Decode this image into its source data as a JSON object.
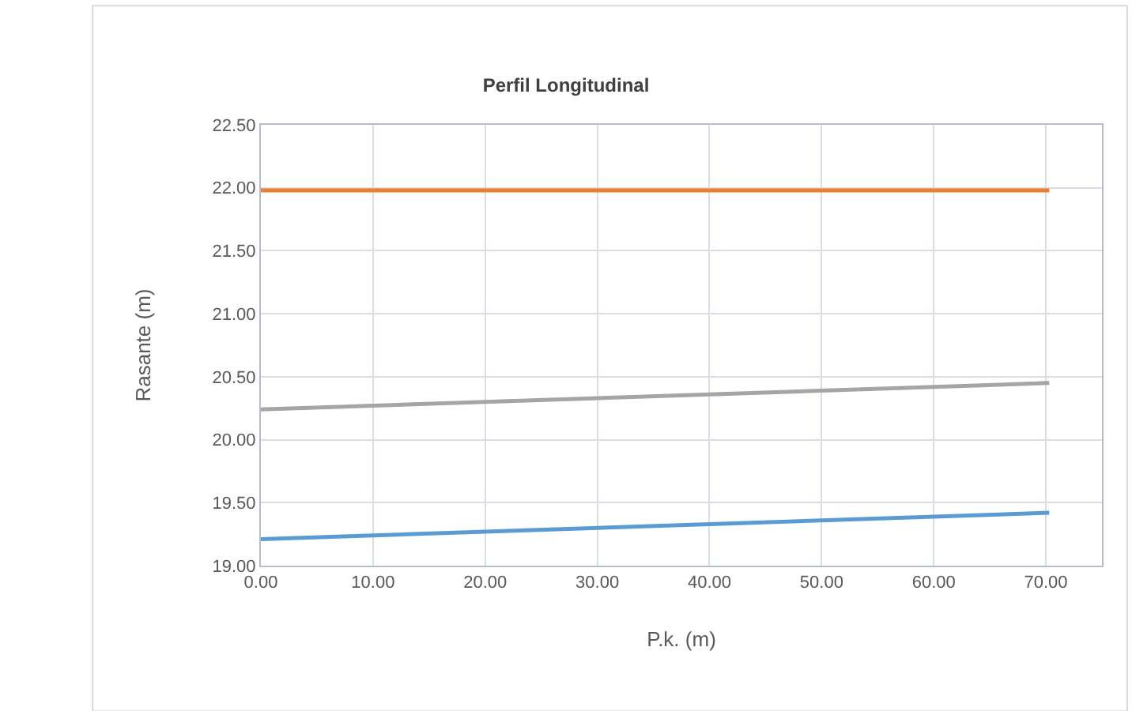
{
  "chart_data": {
    "type": "line",
    "title": "Perfil Longitudinal",
    "xlabel": "P.k. (m)",
    "ylabel": "Rasante (m)",
    "x": [
      0,
      70.3
    ],
    "series": [
      {
        "color": "#ed7d31",
        "values": [
          21.98,
          21.98
        ]
      },
      {
        "color": "#a5a5a5",
        "values": [
          20.24,
          20.45
        ]
      },
      {
        "color": "#5b9bd5",
        "values": [
          19.21,
          19.42
        ]
      }
    ],
    "xlim": [
      0,
      75
    ],
    "xticks": [
      {
        "value": 0,
        "label": "0.00"
      },
      {
        "value": 10,
        "label": "10.00"
      },
      {
        "value": 20,
        "label": "20.00"
      },
      {
        "value": 30,
        "label": "30.00"
      },
      {
        "value": 40,
        "label": "40.00"
      },
      {
        "value": 50,
        "label": "50.00"
      },
      {
        "value": 60,
        "label": "60.00"
      },
      {
        "value": 70,
        "label": "70.00"
      }
    ],
    "ylim": [
      19,
      22.5
    ],
    "yticks": [
      {
        "value": 19,
        "label": "19.00"
      },
      {
        "value": 19.5,
        "label": "19.50"
      },
      {
        "value": 20,
        "label": "20.00"
      },
      {
        "value": 20.5,
        "label": "20.50"
      },
      {
        "value": 21,
        "label": "21.00"
      },
      {
        "value": 21.5,
        "label": "21.50"
      },
      {
        "value": 22,
        "label": "22.00"
      },
      {
        "value": 22.5,
        "label": "22.50"
      }
    ],
    "grid": true,
    "marker": "none",
    "line_style": "solid"
  }
}
